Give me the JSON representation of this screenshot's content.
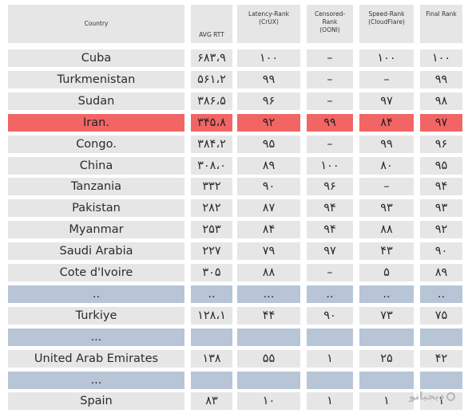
{
  "headers": {
    "country": "Country",
    "avg_rtt": "AVG RTT",
    "latency_1": "Latency-Rank",
    "latency_2": "(CrUX)",
    "censored_1": "Censored-",
    "censored_2": "Rank",
    "censored_3": "(OONI)",
    "speed_1": "Speed-Rank",
    "speed_2": "(CloudFlare)",
    "final": "Final Rank"
  },
  "rows": [
    {
      "country": "Cuba",
      "rtt": "۶۸۳،۹",
      "latency": "۱۰۰",
      "censored": "–",
      "speed": "۱۰۰",
      "final": "۱۰۰"
    },
    {
      "country": "Turkmenistan",
      "rtt": "۵۶۱،۲",
      "latency": "۹۹",
      "censored": "–",
      "speed": "–",
      "final": "۹۹"
    },
    {
      "country": "Sudan",
      "rtt": "۳۸۶،۵",
      "latency": "۹۶",
      "censored": "–",
      "speed": "۹۷",
      "final": "۹۸"
    },
    {
      "country": "Iran.",
      "rtt": "۳۴۵،۸",
      "latency": "۹۲",
      "censored": "۹۹",
      "speed": "۸۴",
      "final": "۹۷"
    },
    {
      "country": "Congo.",
      "rtt": "۳۸۴،۲",
      "latency": "۹۵",
      "censored": "–",
      "speed": "۹۹",
      "final": "۹۶"
    },
    {
      "country": "China",
      "rtt": "۳۰۸،۰",
      "latency": "۸۹",
      "censored": "۱۰۰",
      "speed": "۸۰",
      "final": "۹۵"
    },
    {
      "country": "Tanzania",
      "rtt": "۳۳۲",
      "latency": "۹۰",
      "censored": "۹۶",
      "speed": "–",
      "final": "۹۴"
    },
    {
      "country": "Pakistan",
      "rtt": "۲۸۲",
      "latency": "۸۷",
      "censored": "۹۴",
      "speed": "۹۳",
      "final": "۹۳"
    },
    {
      "country": "Myanmar",
      "rtt": "۲۵۳",
      "latency": "۸۴",
      "censored": "۹۴",
      "speed": "۸۸",
      "final": "۹۲"
    },
    {
      "country": "Saudi Arabia",
      "rtt": "۲۲۷",
      "latency": "۷۹",
      "censored": "۹۷",
      "speed": "۴۳",
      "final": "۹۰"
    },
    {
      "country": "Cote d'Ivoire",
      "rtt": "۳۰۵",
      "latency": "۸۸",
      "censored": "–",
      "speed": "۵",
      "final": "۸۹"
    },
    {
      "country": "..",
      "rtt": "..",
      "latency": "...",
      "censored": "..",
      "speed": "..",
      "final": ".."
    },
    {
      "country": "Turkiye",
      "rtt": "۱۲۸،۱",
      "latency": "۴۴",
      "censored": "۹۰",
      "speed": "۷۳",
      "final": "۷۵"
    },
    {
      "country": "...",
      "rtt": "",
      "latency": "",
      "censored": "",
      "speed": "",
      "final": ""
    },
    {
      "country": "United Arab Emirates",
      "rtt": "۱۳۸",
      "latency": "۵۵",
      "censored": "۱",
      "speed": "۲۵",
      "final": "۴۲"
    },
    {
      "country": "...",
      "rtt": "",
      "latency": "",
      "censored": "",
      "speed": "",
      "final": ""
    },
    {
      "country": "Spain",
      "rtt": "۸۳",
      "latency": "۱۰",
      "censored": "۱",
      "speed": "۱",
      "final": "۱"
    }
  ],
  "watermark": "دیجیاتو"
}
